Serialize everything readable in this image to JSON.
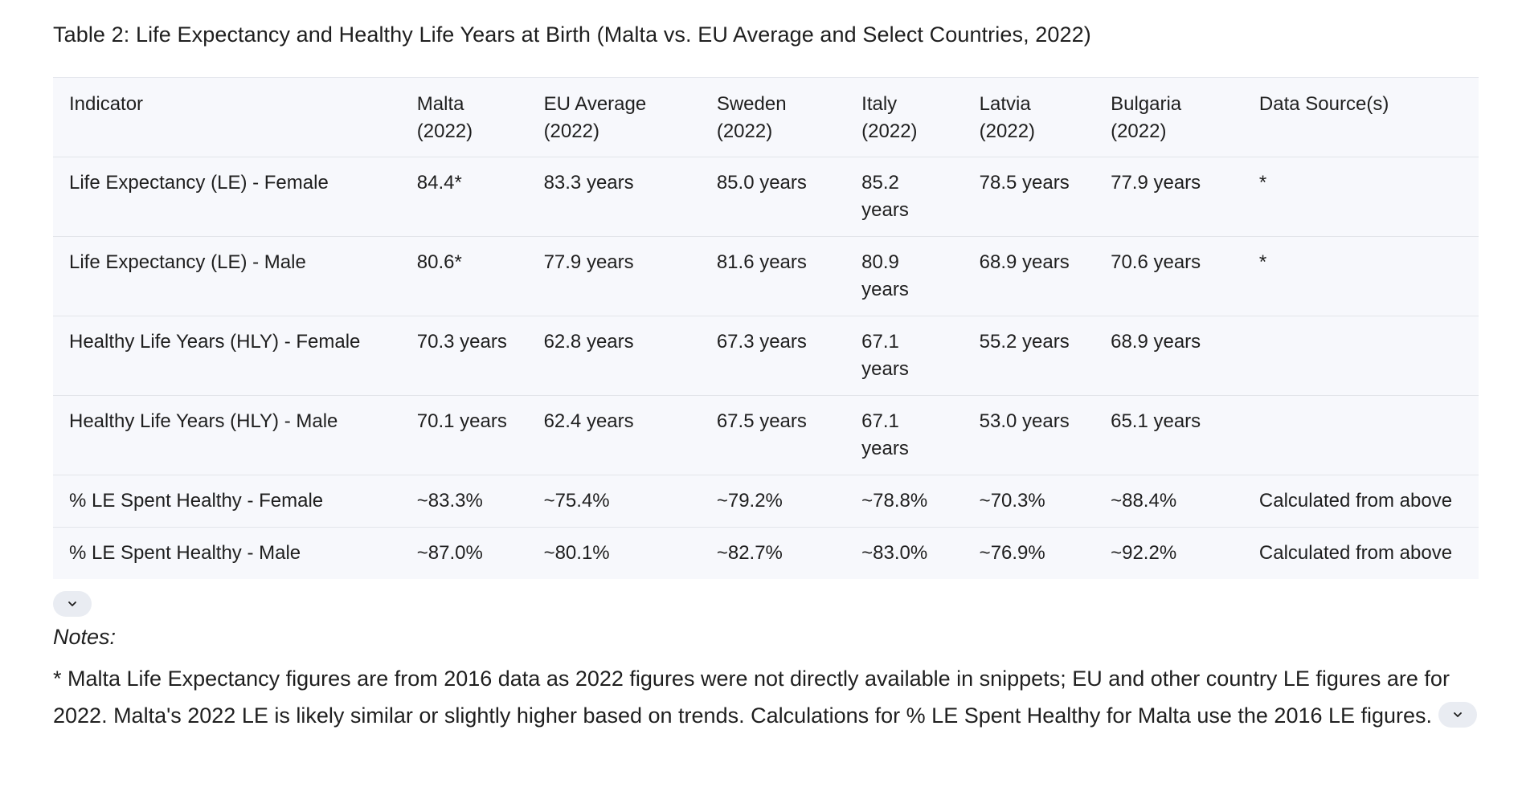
{
  "title": "Table 2: Life Expectancy and Healthy Life Years at Birth (Malta vs. EU Average and Select Countries, 2022)",
  "table": {
    "headers": [
      [
        "Indicator"
      ],
      [
        "Malta",
        "(2022)"
      ],
      [
        "EU Average",
        "(2022)"
      ],
      [
        "Sweden",
        "(2022)"
      ],
      [
        "Italy",
        "(2022)"
      ],
      [
        "Latvia",
        "(2022)"
      ],
      [
        "Bulgaria",
        "(2022)"
      ],
      [
        "Data Source(s)"
      ]
    ],
    "rows": [
      [
        "Life Expectancy (LE) - Female",
        "84.4*",
        "83.3 years",
        "85.0 years",
        "85.2 years",
        "78.5 years",
        "77.9 years",
        "*"
      ],
      [
        "Life Expectancy (LE) - Male",
        "80.6*",
        "77.9 years",
        "81.6 years",
        "80.9 years",
        "68.9 years",
        "70.6 years",
        "*"
      ],
      [
        "Healthy Life Years (HLY) - Female",
        "70.3 years",
        "62.8 years",
        "67.3 years",
        "67.1 years",
        "55.2 years",
        "68.9 years",
        ""
      ],
      [
        "Healthy Life Years (HLY) - Male",
        "70.1 years",
        "62.4 years",
        "67.5 years",
        "67.1 years",
        "53.0 years",
        "65.1 years",
        ""
      ],
      [
        "% LE Spent Healthy - Female",
        "~83.3%",
        "~75.4%",
        "~79.2%",
        "~78.8%",
        "~70.3%",
        "~88.4%",
        "Calculated from above"
      ],
      [
        "% LE Spent Healthy - Male",
        "~87.0%",
        "~80.1%",
        "~82.7%",
        "~83.0%",
        "~76.9%",
        "~92.2%",
        "Calculated from above"
      ]
    ]
  },
  "notes": {
    "label": "Notes:",
    "body": "* Malta Life Expectancy figures are from 2016 data  as 2022 figures were not directly available in snippets; EU and other country LE figures are for 2022. Malta's 2022 LE is likely similar or slightly higher based on trends. Calculations for % LE Spent Healthy for Malta use the 2016 LE figures."
  },
  "icons": {
    "expand_table": "chevron-down-icon",
    "expand_notes": "chevron-down-icon"
  },
  "colors": {
    "table_background": "#f7f8fc",
    "row_divider": "#e3e5ea",
    "chip_background": "#e9ecf2",
    "text": "#1f1f1f"
  }
}
